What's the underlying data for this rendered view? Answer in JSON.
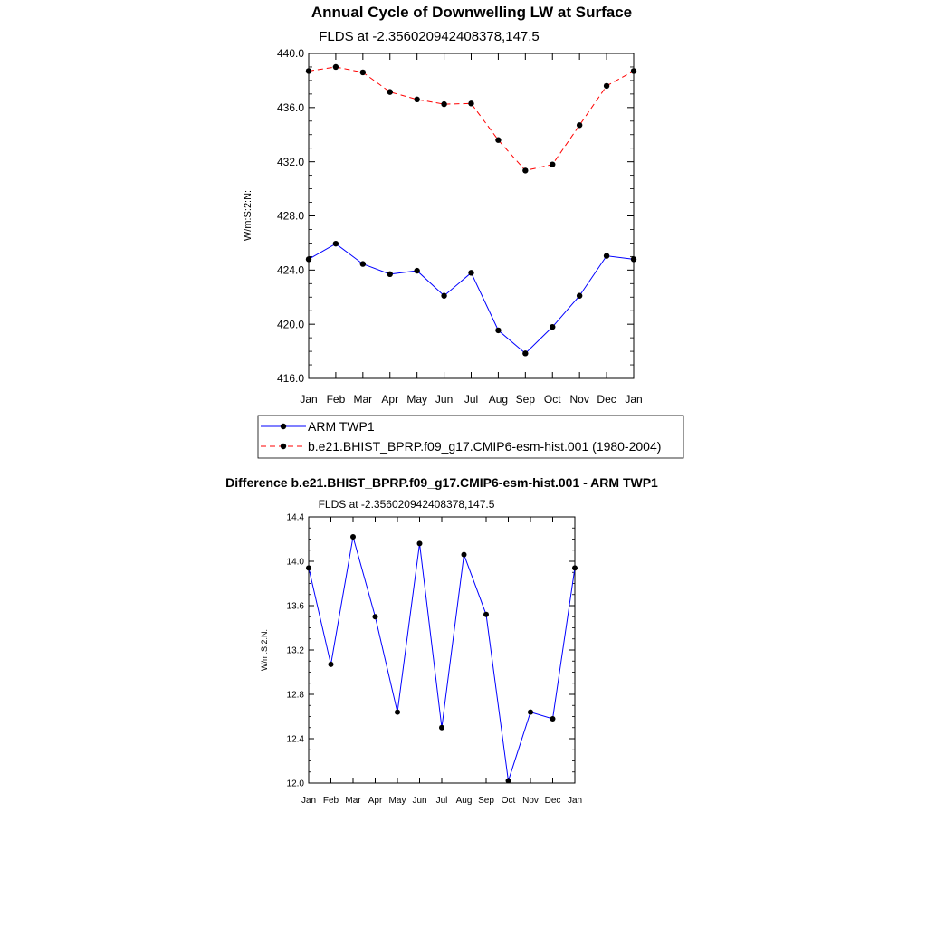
{
  "chart_data": [
    {
      "type": "line",
      "title": "Annual Cycle of Downwelling LW at Surface",
      "subtitle": "FLDS at -2.356020942408378,147.5",
      "ylabel": "W/m:S:2:N:",
      "xlabel": "",
      "ylim": [
        416.0,
        440.0
      ],
      "yticks": [
        "416.0",
        "420.0",
        "424.0",
        "428.0",
        "432.0",
        "436.0",
        "440.0"
      ],
      "categories": [
        "Jan",
        "Feb",
        "Mar",
        "Apr",
        "May",
        "Jun",
        "Jul",
        "Aug",
        "Sep",
        "Oct",
        "Nov",
        "Dec",
        "Jan"
      ],
      "series": [
        {
          "name": "ARM TWP1",
          "color": "#0000ff",
          "dash": "solid",
          "values": [
            424.8,
            425.95,
            424.45,
            423.7,
            423.95,
            422.1,
            423.8,
            419.55,
            417.85,
            419.8,
            422.1,
            425.05,
            424.8
          ]
        },
        {
          "name": "b.e21.BHIST_BPRP.f09_g17.CMIP6-esm-hist.001 (1980-2004)",
          "color": "#ff0000",
          "dash": "dashed",
          "values": [
            438.7,
            439.0,
            438.6,
            437.15,
            436.6,
            436.25,
            436.3,
            433.6,
            431.35,
            431.8,
            434.7,
            437.6,
            438.7
          ]
        }
      ],
      "legend": "below"
    },
    {
      "type": "line",
      "title": "Difference b.e21.BHIST_BPRP.f09_g17.CMIP6-esm-hist.001 - ARM TWP1",
      "subtitle": "FLDS at -2.356020942408378,147.5",
      "ylabel": "W/m:S:2:N:",
      "xlabel": "",
      "ylim": [
        12.0,
        14.4
      ],
      "yticks": [
        "12.0",
        "12.4",
        "12.8",
        "13.2",
        "13.6",
        "14.0",
        "14.4"
      ],
      "categories": [
        "Jan",
        "Feb",
        "Mar",
        "Apr",
        "May",
        "Jun",
        "Jul",
        "Aug",
        "Sep",
        "Oct",
        "Nov",
        "Dec",
        "Jan"
      ],
      "series": [
        {
          "name": "Difference",
          "color": "#0000ff",
          "dash": "solid",
          "values": [
            13.94,
            13.07,
            14.22,
            13.5,
            12.64,
            14.16,
            12.5,
            14.06,
            13.52,
            12.02,
            12.64,
            12.58,
            13.94
          ]
        }
      ]
    }
  ]
}
